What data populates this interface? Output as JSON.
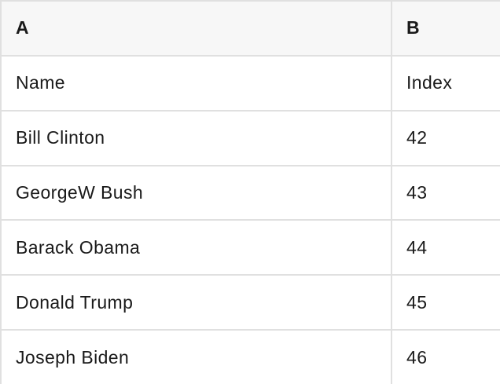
{
  "table": {
    "columns": [
      {
        "id": "A",
        "header": "A"
      },
      {
        "id": "B",
        "header": "B"
      }
    ],
    "rows": [
      {
        "A": "Name",
        "B": "Index"
      },
      {
        "A": "Bill Clinton",
        "B": "42"
      },
      {
        "A": "GeorgeW Bush",
        "B": "43"
      },
      {
        "A": "Barack Obama",
        "B": "44"
      },
      {
        "A": "Donald Trump",
        "B": "45"
      },
      {
        "A": "Joseph Biden",
        "B": "46"
      }
    ]
  },
  "colors": {
    "header_bg": "#f7f7f7",
    "border": "#e0e0e0",
    "text": "#1a1a1a",
    "cell_bg": "#ffffff"
  }
}
